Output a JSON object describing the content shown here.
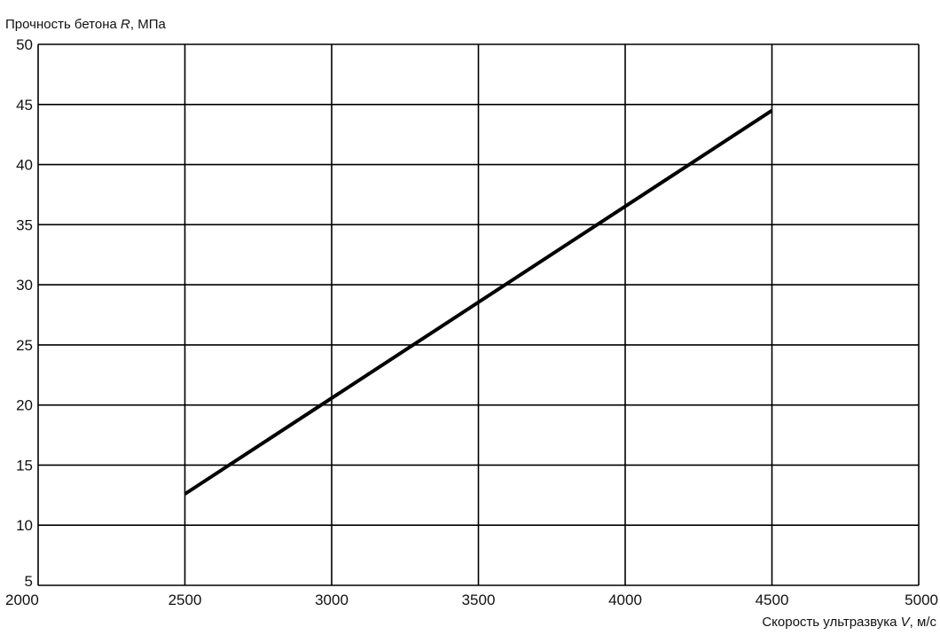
{
  "chart_data": {
    "type": "line",
    "title": "",
    "ylabel": {
      "prefix": "Прочность бетона ",
      "var": "R",
      "suffix": ", МПа"
    },
    "xlabel": {
      "prefix": "Скорость ультразвука ",
      "var": "V",
      "suffix": ", м/с"
    },
    "xlim": [
      2000,
      5000
    ],
    "ylim": [
      5,
      50
    ],
    "x_ticks": [
      2000,
      2500,
      3000,
      3500,
      4000,
      4500,
      5000
    ],
    "y_ticks": [
      5,
      10,
      15,
      20,
      25,
      30,
      35,
      40,
      45,
      50
    ],
    "grid": true,
    "legend": "none",
    "series": [
      {
        "color": "#000000",
        "points": [
          {
            "x": 2500,
            "y": 12.6
          },
          {
            "x": 4500,
            "y": 44.5
          }
        ]
      }
    ]
  }
}
